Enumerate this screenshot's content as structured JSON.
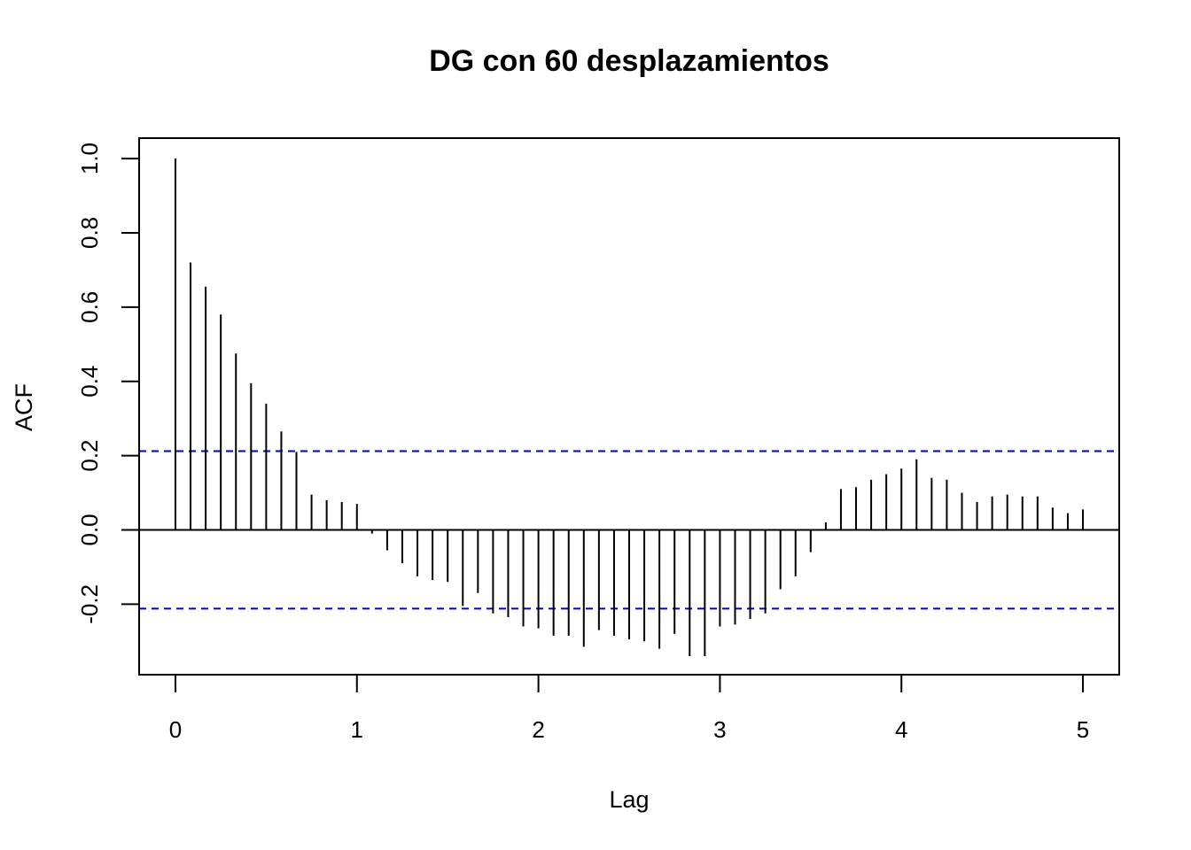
{
  "chart_data": {
    "type": "bar",
    "subtype": "acf-stem",
    "title": "DG con 60 desplazamientos",
    "xlabel": "Lag",
    "ylabel": "ACF",
    "xlim": [
      -0.2,
      5.2
    ],
    "ylim": [
      -0.39,
      1.055
    ],
    "x_ticks": [
      "0",
      "1",
      "2",
      "3",
      "4",
      "5"
    ],
    "y_ticks": [
      "-0.2",
      "0.0",
      "0.2",
      "0.4",
      "0.6",
      "0.8",
      "1.0"
    ],
    "confidence_bound": 0.212,
    "confidence_color": "#0000cc",
    "grid": false,
    "lag_step": 0.0833333,
    "values": [
      1.0,
      0.72,
      0.655,
      0.58,
      0.475,
      0.395,
      0.34,
      0.265,
      0.21,
      0.095,
      0.08,
      0.075,
      0.07,
      -0.01,
      -0.055,
      -0.09,
      -0.125,
      -0.135,
      -0.14,
      -0.205,
      -0.17,
      -0.225,
      -0.235,
      -0.26,
      -0.265,
      -0.285,
      -0.285,
      -0.315,
      -0.27,
      -0.285,
      -0.295,
      -0.3,
      -0.32,
      -0.28,
      -0.34,
      -0.34,
      -0.26,
      -0.255,
      -0.24,
      -0.225,
      -0.16,
      -0.125,
      -0.06,
      0.02,
      0.11,
      0.115,
      0.135,
      0.15,
      0.165,
      0.19,
      0.14,
      0.135,
      0.1,
      0.075,
      0.09,
      0.095,
      0.09,
      0.09,
      0.06,
      0.045,
      0.055
    ]
  }
}
